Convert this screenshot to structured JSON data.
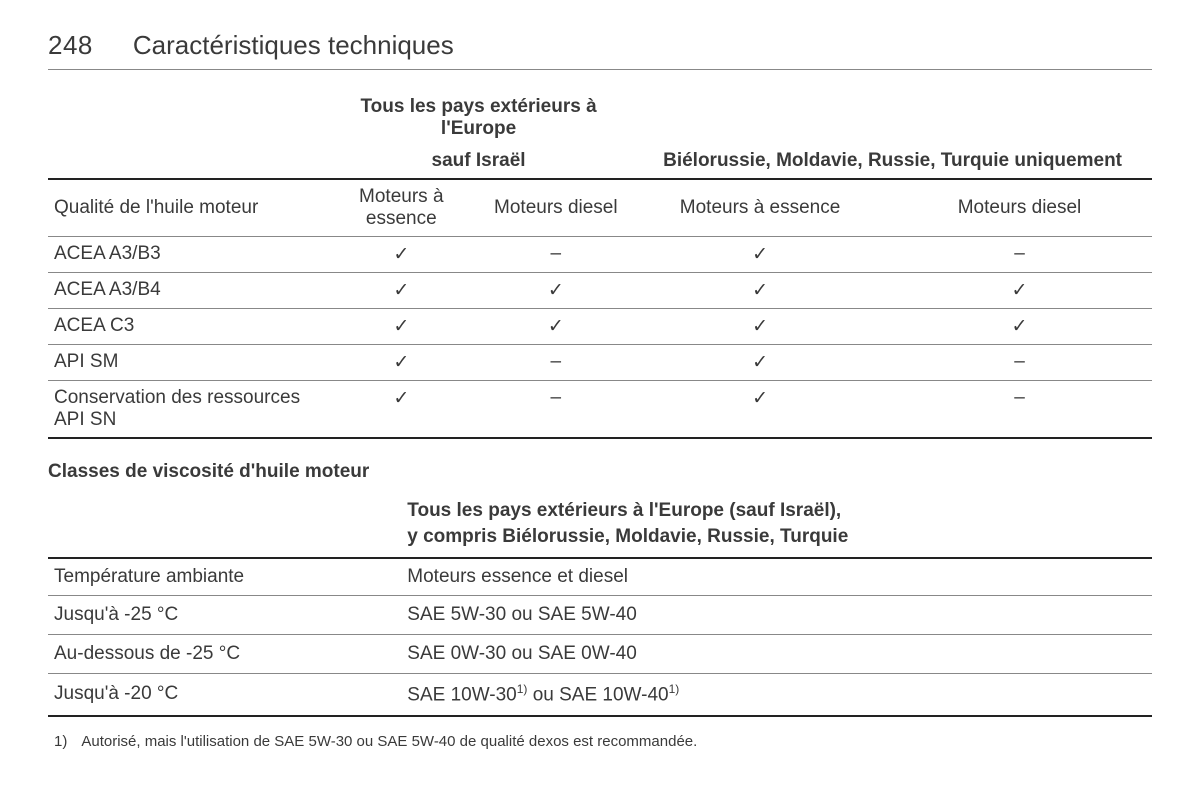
{
  "page_number": "248",
  "page_title": "Caractéristiques techniques",
  "table1": {
    "group_header_line1_col_a": "Tous les pays extérieurs à l'Europe",
    "group_header_line2_col_a": "sauf Israël",
    "group_header_col_b": "Biélorussie, Moldavie, Russie, Turquie uniquement",
    "sub_headers": {
      "left": "Qualité de l'huile moteur",
      "petrol": "Moteurs à essence",
      "diesel": "Moteurs diesel"
    },
    "rows": [
      {
        "label": "ACEA A3/B3",
        "cells": [
          "✓",
          "–",
          "✓",
          "–"
        ]
      },
      {
        "label": "ACEA A3/B4",
        "cells": [
          "✓",
          "✓",
          "✓",
          "✓"
        ]
      },
      {
        "label": "ACEA C3",
        "cells": [
          "✓",
          "✓",
          "✓",
          "✓"
        ]
      },
      {
        "label": "API SM",
        "cells": [
          "✓",
          "–",
          "✓",
          "–"
        ]
      },
      {
        "label": "Conservation des ressources API SN",
        "cells": [
          "✓",
          "–",
          "✓",
          "–"
        ]
      }
    ]
  },
  "section2_heading": "Classes de viscosité d'huile moteur",
  "table2": {
    "group_header_line1": "Tous les pays extérieurs à l'Europe (sauf Israël),",
    "group_header_line2": "y compris Biélorussie, Moldavie, Russie, Turquie",
    "sub_headers": {
      "left": "Température ambiante",
      "right": "Moteurs essence et diesel"
    },
    "rows": [
      {
        "label": "Jusqu'à -25 °C",
        "value_html": "SAE 5W-30 ou SAE 5W-40"
      },
      {
        "label": "Au-dessous de -25 °C",
        "value_html": "SAE 0W-30 ou SAE 0W-40"
      },
      {
        "label": "Jusqu'à -20 °C",
        "value_html": "SAE 10W-30<sup>1)</sup> ou SAE 10W-40<sup>1)</sup>"
      }
    ]
  },
  "footnote": {
    "marker": "1)",
    "text": "Autorisé, mais l'utilisation de SAE 5W-30 ou SAE 5W-40 de qualité dexos est recommandée."
  }
}
